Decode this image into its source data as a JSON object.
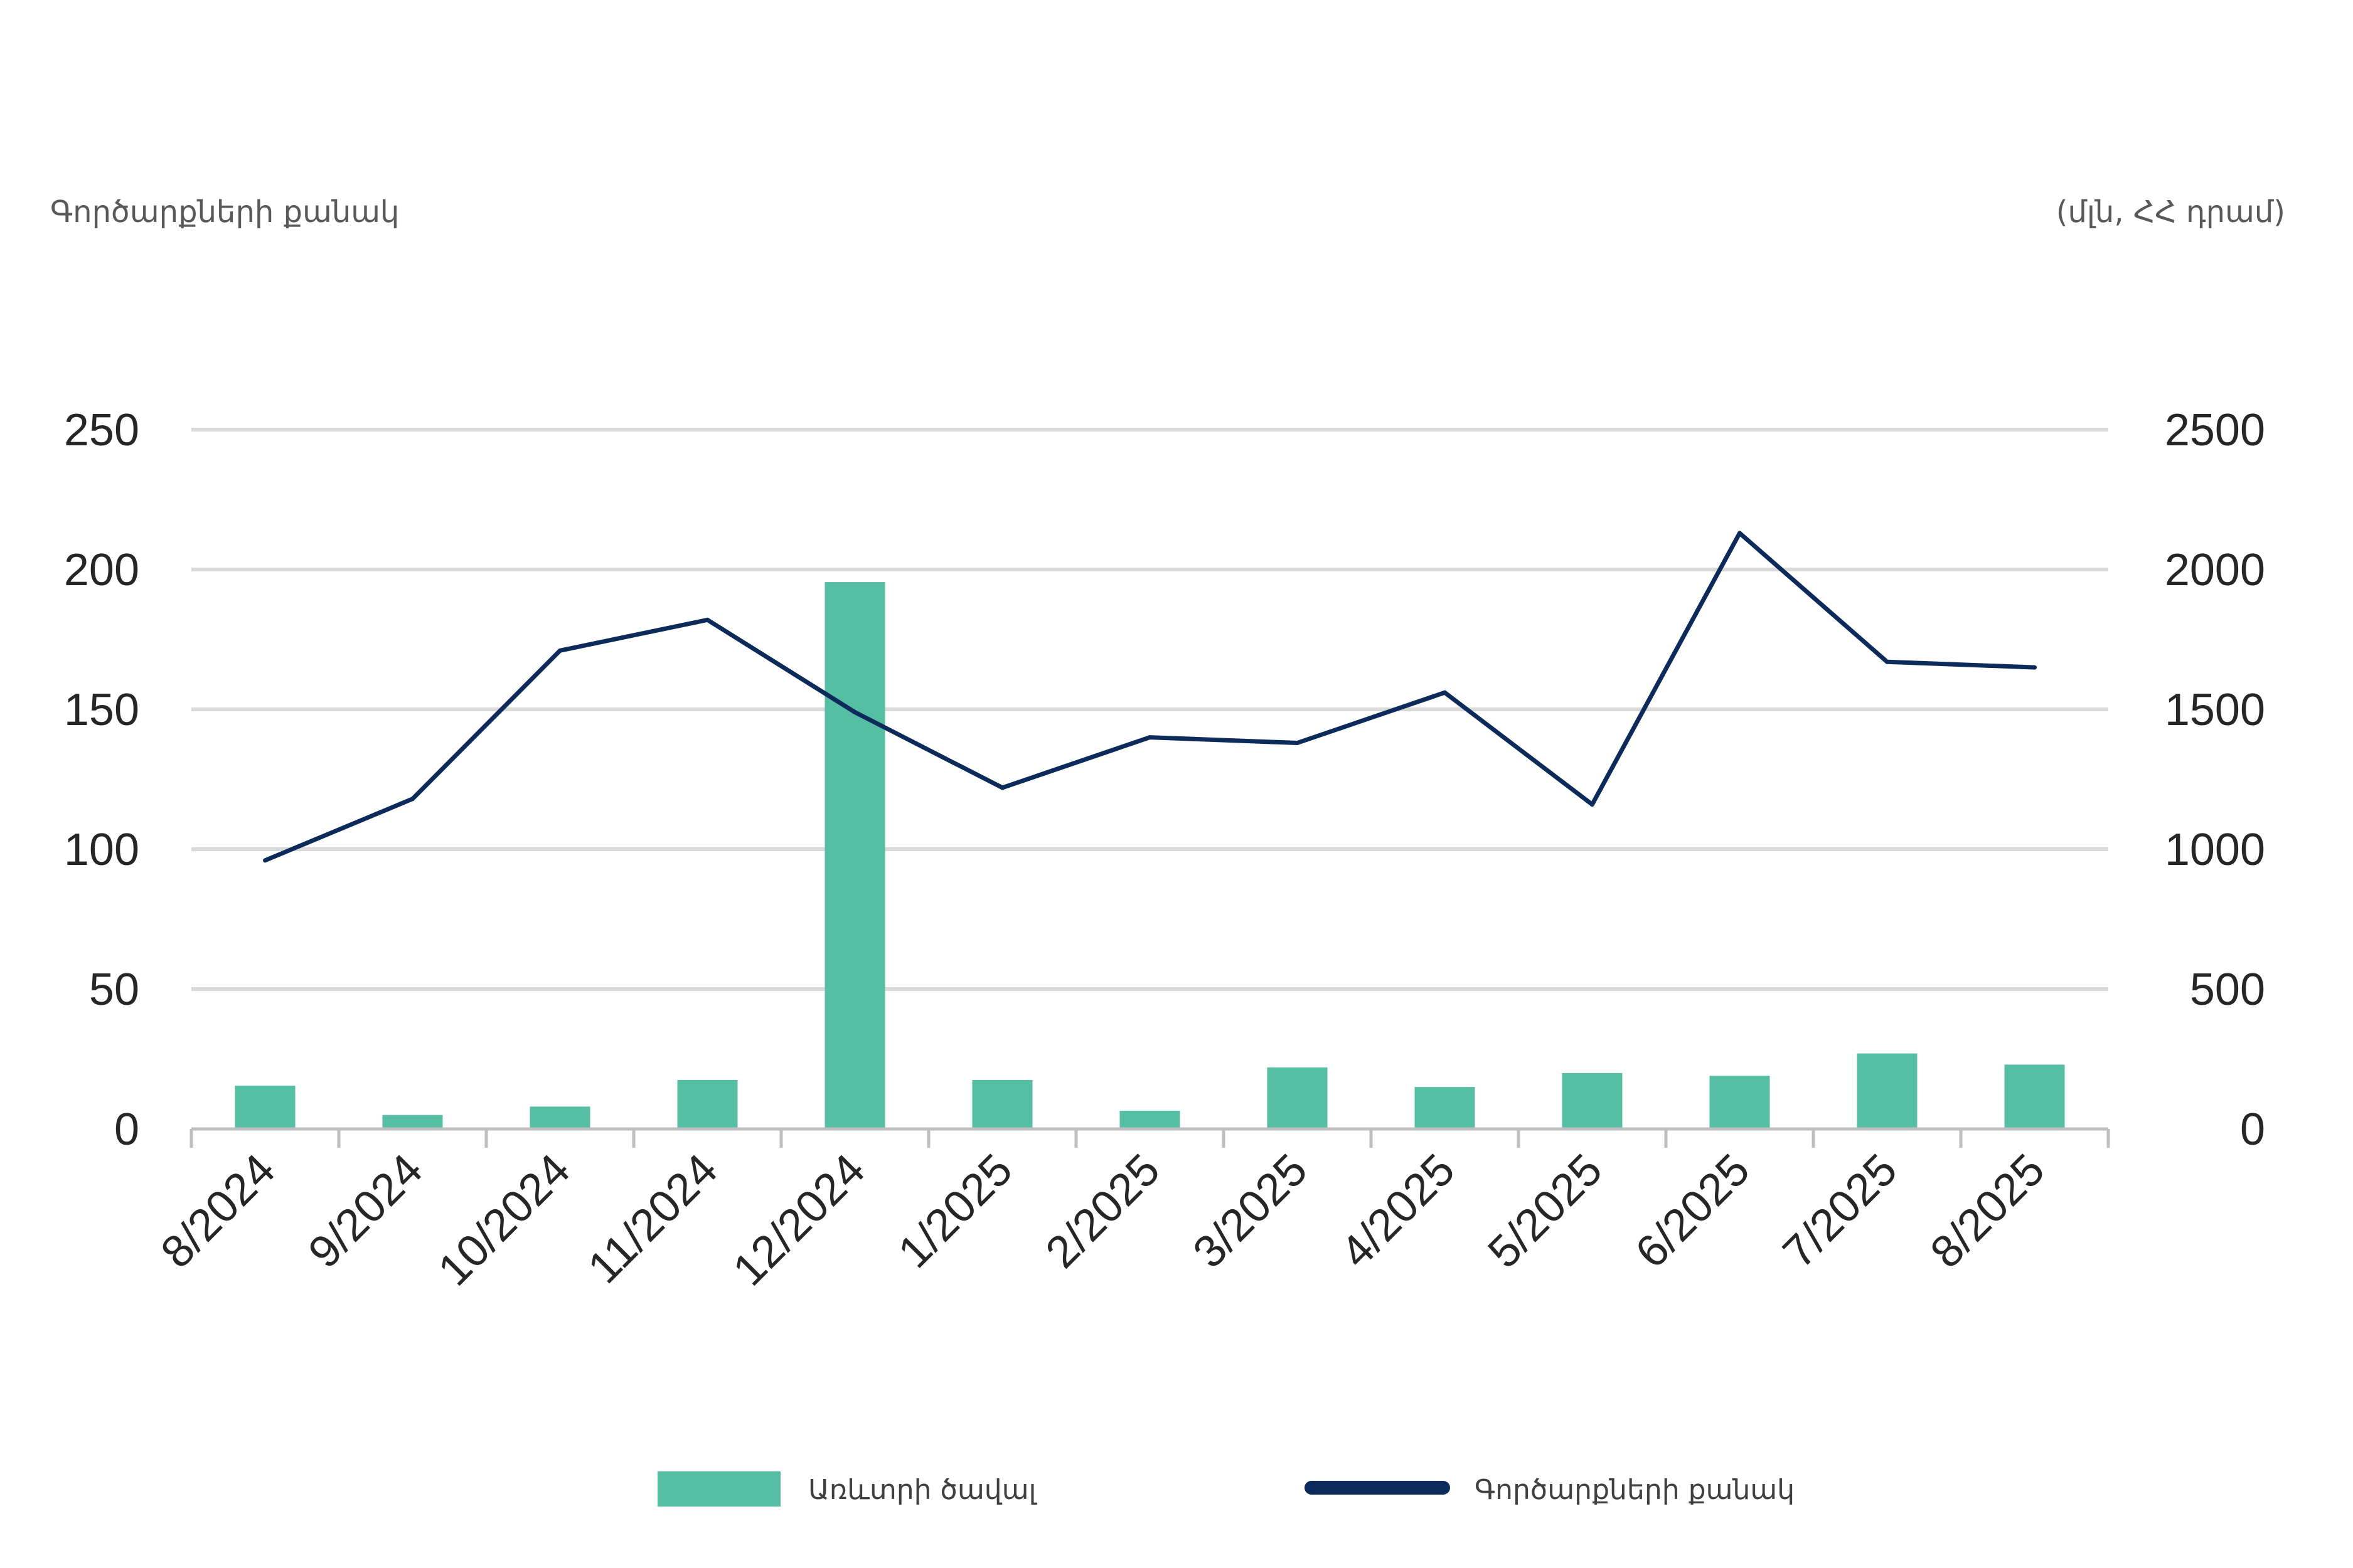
{
  "left_caption": "Գործարքների քանակ",
  "right_caption": "(մլն, ՀՀ դրամ)",
  "colors": {
    "bars": "#56BFA3",
    "line": "#0D2B5A",
    "grid": "#D9D9D9",
    "axis": "#BFBFBF",
    "text": "#262626"
  },
  "chart_data": {
    "type": "bar",
    "categories": [
      "8/2024",
      "9/2024",
      "10/2024",
      "11/2024",
      "12/2024",
      "1/2025",
      "2/2025",
      "3/2025",
      "4/2025",
      "5/2025",
      "6/2025",
      "7/2025",
      "8/2025"
    ],
    "series": [
      {
        "name": "Առևտրի ծավալ",
        "type": "bar",
        "axis": "right",
        "values": [
          155,
          50,
          80,
          175,
          1955,
          175,
          65,
          220,
          150,
          200,
          190,
          270,
          230
        ]
      },
      {
        "name": "Գործարքների քանակ",
        "type": "line",
        "axis": "left",
        "values": [
          96,
          118,
          171,
          182,
          149,
          122,
          140,
          138,
          156,
          116,
          213,
          167,
          165
        ]
      }
    ],
    "y_left": {
      "ylim": [
        0,
        250
      ],
      "ticks": [
        "0",
        "50",
        "100",
        "150",
        "200",
        "250"
      ]
    },
    "y_right": {
      "ylim": [
        0,
        2500
      ],
      "ticks": [
        "0",
        "500",
        "1000",
        "1500",
        "2000",
        "2500"
      ]
    },
    "grid": true,
    "legend": "bottom"
  }
}
